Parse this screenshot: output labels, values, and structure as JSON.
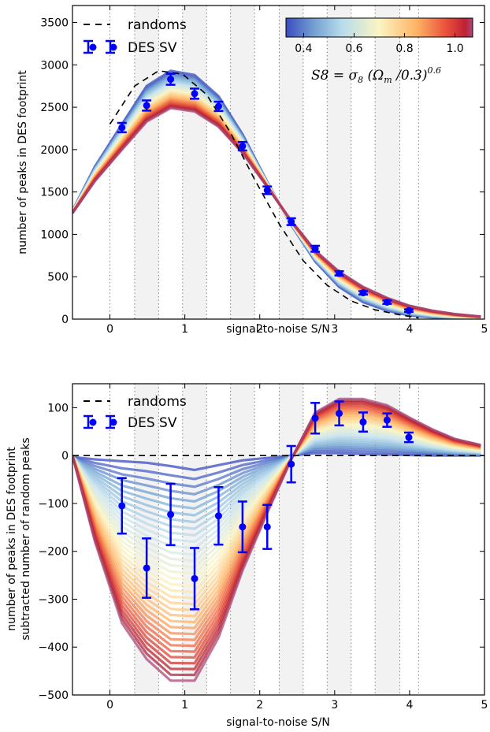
{
  "colorbar": {
    "ticks": [
      "0.4",
      "0.6",
      "0.8",
      "1.0"
    ],
    "range": [
      0.33,
      1.07
    ],
    "formula": "S8 = σ8 (Ωm/0.3)^0.6",
    "colors": [
      "#3b4cc0",
      "#7aaed6",
      "#c7e3ee",
      "#fbf5c2",
      "#fdb365",
      "#e8503a",
      "#b2182b",
      "#a94a7a"
    ]
  },
  "legend": {
    "randoms": "randoms",
    "des_sv": "DES SV"
  },
  "colors": {
    "des_sv": "#0000ff",
    "randoms": "#000000",
    "bin_shade": "#f2f2f2",
    "bin_line": "#808080"
  },
  "bins": [
    0.0,
    0.33,
    0.65,
    0.97,
    1.29,
    1.61,
    1.93,
    2.26,
    2.58,
    2.9,
    3.22,
    3.54,
    3.87,
    4.12
  ],
  "chart_data": [
    {
      "type": "line",
      "xlabel": "signal-to-noise S/N",
      "ylabel": "number of peaks in DES footprint",
      "xlim": [
        -0.5,
        5
      ],
      "ylim": [
        0,
        3700
      ],
      "xticks": [
        "0",
        "1",
        "2",
        "3",
        "4",
        "5"
      ],
      "yticks": [
        "0",
        "500",
        "1000",
        "1500",
        "2000",
        "2500",
        "3000",
        "3500"
      ],
      "randoms": {
        "name": "randoms",
        "x": [
          0.0,
          0.33,
          0.65,
          0.97,
          1.29,
          1.61,
          1.93,
          2.26,
          2.58,
          2.9,
          3.22,
          3.54,
          3.87,
          4.12
        ],
        "y": [
          2300,
          2750,
          2930,
          2890,
          2650,
          2200,
          1650,
          1120,
          690,
          400,
          215,
          110,
          50,
          15
        ]
      },
      "des_sv": {
        "name": "DES SV",
        "x": [
          0.16,
          0.49,
          0.81,
          1.13,
          1.45,
          1.77,
          2.1,
          2.42,
          2.74,
          3.06,
          3.38,
          3.7,
          3.99
        ],
        "y": [
          2260,
          2520,
          2830,
          2660,
          2510,
          2040,
          1520,
          1150,
          830,
          540,
          310,
          200,
          100
        ],
        "err": [
          55,
          60,
          65,
          60,
          55,
          50,
          45,
          40,
          35,
          25,
          20,
          20,
          15
        ]
      },
      "model_band": {
        "x": [
          -0.5,
          -0.2,
          0.16,
          0.49,
          0.81,
          1.13,
          1.45,
          1.77,
          2.1,
          2.42,
          2.74,
          3.06,
          3.38,
          3.7,
          3.99,
          4.3,
          4.6,
          4.95
        ],
        "low_s8": [
          1280,
          1800,
          2300,
          2750,
          2930,
          2880,
          2630,
          2180,
          1620,
          1110,
          680,
          380,
          200,
          100,
          45,
          20,
          8,
          3
        ],
        "high_s8": [
          1250,
          1630,
          2000,
          2330,
          2490,
          2450,
          2270,
          1960,
          1560,
          1160,
          810,
          560,
          380,
          250,
          160,
          100,
          60,
          30
        ]
      }
    },
    {
      "type": "line",
      "xlabel": "signal-to-noise S/N",
      "ylabel": "number of peaks in DES footprint subtracted number of random peaks",
      "xlim": [
        -0.5,
        5
      ],
      "ylim": [
        -500,
        150
      ],
      "xticks": [
        "0",
        "1",
        "2",
        "3",
        "4",
        "5"
      ],
      "yticks": [
        "−500",
        "−400",
        "−300",
        "−200",
        "−100",
        "0",
        "100"
      ],
      "randoms": {
        "name": "randoms",
        "x": [
          -0.5,
          5
        ],
        "y": [
          0,
          0
        ]
      },
      "des_sv": {
        "name": "DES SV",
        "x": [
          0.16,
          0.49,
          0.81,
          1.13,
          1.45,
          1.77,
          2.1,
          2.42,
          2.74,
          3.06,
          3.38,
          3.7,
          3.99
        ],
        "y": [
          -105,
          -235,
          -123,
          -257,
          -126,
          -149,
          -149,
          -18,
          78,
          88,
          70,
          74,
          38
        ],
        "err": [
          58,
          62,
          64,
          64,
          60,
          53,
          46,
          38,
          32,
          25,
          20,
          14,
          10
        ]
      },
      "model_band": {
        "x": [
          -0.5,
          -0.2,
          0.16,
          0.49,
          0.81,
          1.13,
          1.45,
          1.77,
          2.1,
          2.42,
          2.74,
          3.06,
          3.38,
          3.7,
          3.99,
          4.3,
          4.6,
          4.95
        ],
        "low_s8": [
          -3,
          -8,
          -12,
          -15,
          -22,
          -30,
          -20,
          -10,
          -5,
          0,
          5,
          5,
          3,
          2,
          1,
          0,
          0,
          0
        ],
        "high_s8": [
          0,
          -180,
          -350,
          -425,
          -470,
          -470,
          -380,
          -240,
          -120,
          -8,
          90,
          118,
          118,
          105,
          80,
          55,
          35,
          22
        ]
      }
    }
  ]
}
